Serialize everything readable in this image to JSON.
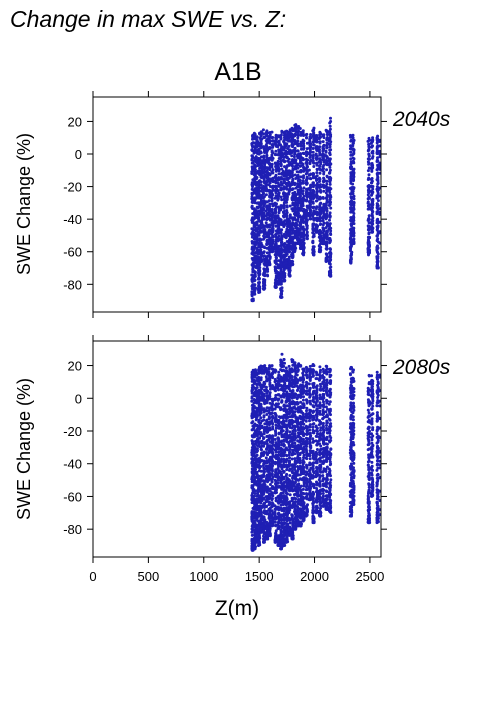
{
  "figure": {
    "heading": "Change in max SWE vs. Z:",
    "scenario": "A1B",
    "x_axis_label": "Z(m)",
    "y_axis_label": "SWE Change (%)"
  },
  "colors": {
    "points": "#1f1fb4",
    "period_label": "#1f1fb4",
    "axes": "#000000"
  },
  "chart_data": [
    {
      "type": "scatter",
      "period": "2040s",
      "xlabel": "",
      "ylabel": "SWE Change (%)",
      "xlim": [
        0,
        2600
      ],
      "ylim": [
        -97,
        35
      ],
      "xticks": [
        0,
        500,
        1000,
        1500,
        2000,
        2500
      ],
      "xtick_labels_shown": false,
      "yticks": [
        20,
        0,
        -20,
        -40,
        -60,
        -80
      ],
      "ytick_labels": [
        "20",
        "0",
        "-20",
        "-40",
        "-60",
        "-80"
      ],
      "grid": false,
      "clusters": [
        {
          "z": 1440,
          "ymin": -90,
          "ymax": 12
        },
        {
          "z": 1460,
          "ymin": -86,
          "ymax": 13
        },
        {
          "z": 1480,
          "ymin": -70,
          "ymax": 13
        },
        {
          "z": 1500,
          "ymin": -85,
          "ymax": 13
        },
        {
          "z": 1520,
          "ymin": -66,
          "ymax": 14
        },
        {
          "z": 1545,
          "ymin": -83,
          "ymax": 15
        },
        {
          "z": 1570,
          "ymin": -75,
          "ymax": 15
        },
        {
          "z": 1595,
          "ymin": -68,
          "ymax": 14
        },
        {
          "z": 1620,
          "ymin": -60,
          "ymax": 14
        },
        {
          "z": 1650,
          "ymin": -82,
          "ymax": 12
        },
        {
          "z": 1675,
          "ymin": -80,
          "ymax": 12
        },
        {
          "z": 1700,
          "ymin": -88,
          "ymax": 14
        },
        {
          "z": 1725,
          "ymin": -78,
          "ymax": 14
        },
        {
          "z": 1750,
          "ymin": -70,
          "ymax": 15
        },
        {
          "z": 1775,
          "ymin": -75,
          "ymax": 15
        },
        {
          "z": 1800,
          "ymin": -68,
          "ymax": 17
        },
        {
          "z": 1825,
          "ymin": -60,
          "ymax": 19
        },
        {
          "z": 1850,
          "ymin": -55,
          "ymax": 18
        },
        {
          "z": 1875,
          "ymin": -58,
          "ymax": 16
        },
        {
          "z": 1900,
          "ymin": -62,
          "ymax": 15
        },
        {
          "z": 1930,
          "ymin": -52,
          "ymax": 13
        },
        {
          "z": 1960,
          "ymin": -40,
          "ymax": 12
        },
        {
          "z": 1990,
          "ymin": -62,
          "ymax": 16
        },
        {
          "z": 2020,
          "ymin": -48,
          "ymax": 12
        },
        {
          "z": 2050,
          "ymin": -60,
          "ymax": 14
        },
        {
          "z": 2080,
          "ymin": -55,
          "ymax": 12
        },
        {
          "z": 2110,
          "ymin": -66,
          "ymax": 16
        },
        {
          "z": 2140,
          "ymin": -75,
          "ymax": 22
        },
        {
          "z": 2330,
          "ymin": -67,
          "ymax": 12
        },
        {
          "z": 2350,
          "ymin": -55,
          "ymax": 12
        },
        {
          "z": 2490,
          "ymin": -62,
          "ymax": 12
        },
        {
          "z": 2520,
          "ymin": -48,
          "ymax": 10
        },
        {
          "z": 2570,
          "ymin": -70,
          "ymax": 12
        },
        {
          "z": 2595,
          "ymin": -60,
          "ymax": 11
        }
      ]
    },
    {
      "type": "scatter",
      "period": "2080s",
      "xlabel": "Z(m)",
      "ylabel": "SWE Change (%)",
      "xlim": [
        0,
        2600
      ],
      "ylim": [
        -97,
        35
      ],
      "xticks": [
        0,
        500,
        1000,
        1500,
        2000,
        2500
      ],
      "xtick_labels": [
        "0",
        "500",
        "1000",
        "1500",
        "2000",
        "2500"
      ],
      "yticks": [
        20,
        0,
        -20,
        -40,
        -60,
        -80
      ],
      "ytick_labels": [
        "20",
        "0",
        "-20",
        "-40",
        "-60",
        "-80"
      ],
      "grid": false,
      "clusters": [
        {
          "z": 1440,
          "ymin": -93,
          "ymax": 18
        },
        {
          "z": 1460,
          "ymin": -92,
          "ymax": 18
        },
        {
          "z": 1480,
          "ymin": -88,
          "ymax": 18
        },
        {
          "z": 1500,
          "ymin": -90,
          "ymax": 19
        },
        {
          "z": 1520,
          "ymin": -82,
          "ymax": 20
        },
        {
          "z": 1545,
          "ymin": -88,
          "ymax": 20
        },
        {
          "z": 1570,
          "ymin": -86,
          "ymax": 20
        },
        {
          "z": 1595,
          "ymin": -84,
          "ymax": 20
        },
        {
          "z": 1620,
          "ymin": -78,
          "ymax": 20
        },
        {
          "z": 1650,
          "ymin": -88,
          "ymax": 18
        },
        {
          "z": 1675,
          "ymin": -90,
          "ymax": 18
        },
        {
          "z": 1700,
          "ymin": -92,
          "ymax": 28
        },
        {
          "z": 1725,
          "ymin": -90,
          "ymax": 25
        },
        {
          "z": 1750,
          "ymin": -88,
          "ymax": 22
        },
        {
          "z": 1775,
          "ymin": -84,
          "ymax": 20
        },
        {
          "z": 1800,
          "ymin": -86,
          "ymax": 24
        },
        {
          "z": 1825,
          "ymin": -80,
          "ymax": 22
        },
        {
          "z": 1850,
          "ymin": -78,
          "ymax": 22
        },
        {
          "z": 1875,
          "ymin": -78,
          "ymax": 21
        },
        {
          "z": 1900,
          "ymin": -75,
          "ymax": 20
        },
        {
          "z": 1930,
          "ymin": -72,
          "ymax": 20
        },
        {
          "z": 1960,
          "ymin": -62,
          "ymax": 20
        },
        {
          "z": 1990,
          "ymin": -76,
          "ymax": 21
        },
        {
          "z": 2020,
          "ymin": -70,
          "ymax": 18
        },
        {
          "z": 2050,
          "ymin": -72,
          "ymax": 20
        },
        {
          "z": 2080,
          "ymin": -66,
          "ymax": 18
        },
        {
          "z": 2110,
          "ymin": -68,
          "ymax": 20
        },
        {
          "z": 2140,
          "ymin": -70,
          "ymax": 18
        },
        {
          "z": 2330,
          "ymin": -72,
          "ymax": 20
        },
        {
          "z": 2350,
          "ymin": -65,
          "ymax": 18
        },
        {
          "z": 2490,
          "ymin": -76,
          "ymax": 15
        },
        {
          "z": 2520,
          "ymin": -60,
          "ymax": 14
        },
        {
          "z": 2570,
          "ymin": -76,
          "ymax": 16
        },
        {
          "z": 2595,
          "ymin": -72,
          "ymax": 18
        }
      ]
    }
  ]
}
